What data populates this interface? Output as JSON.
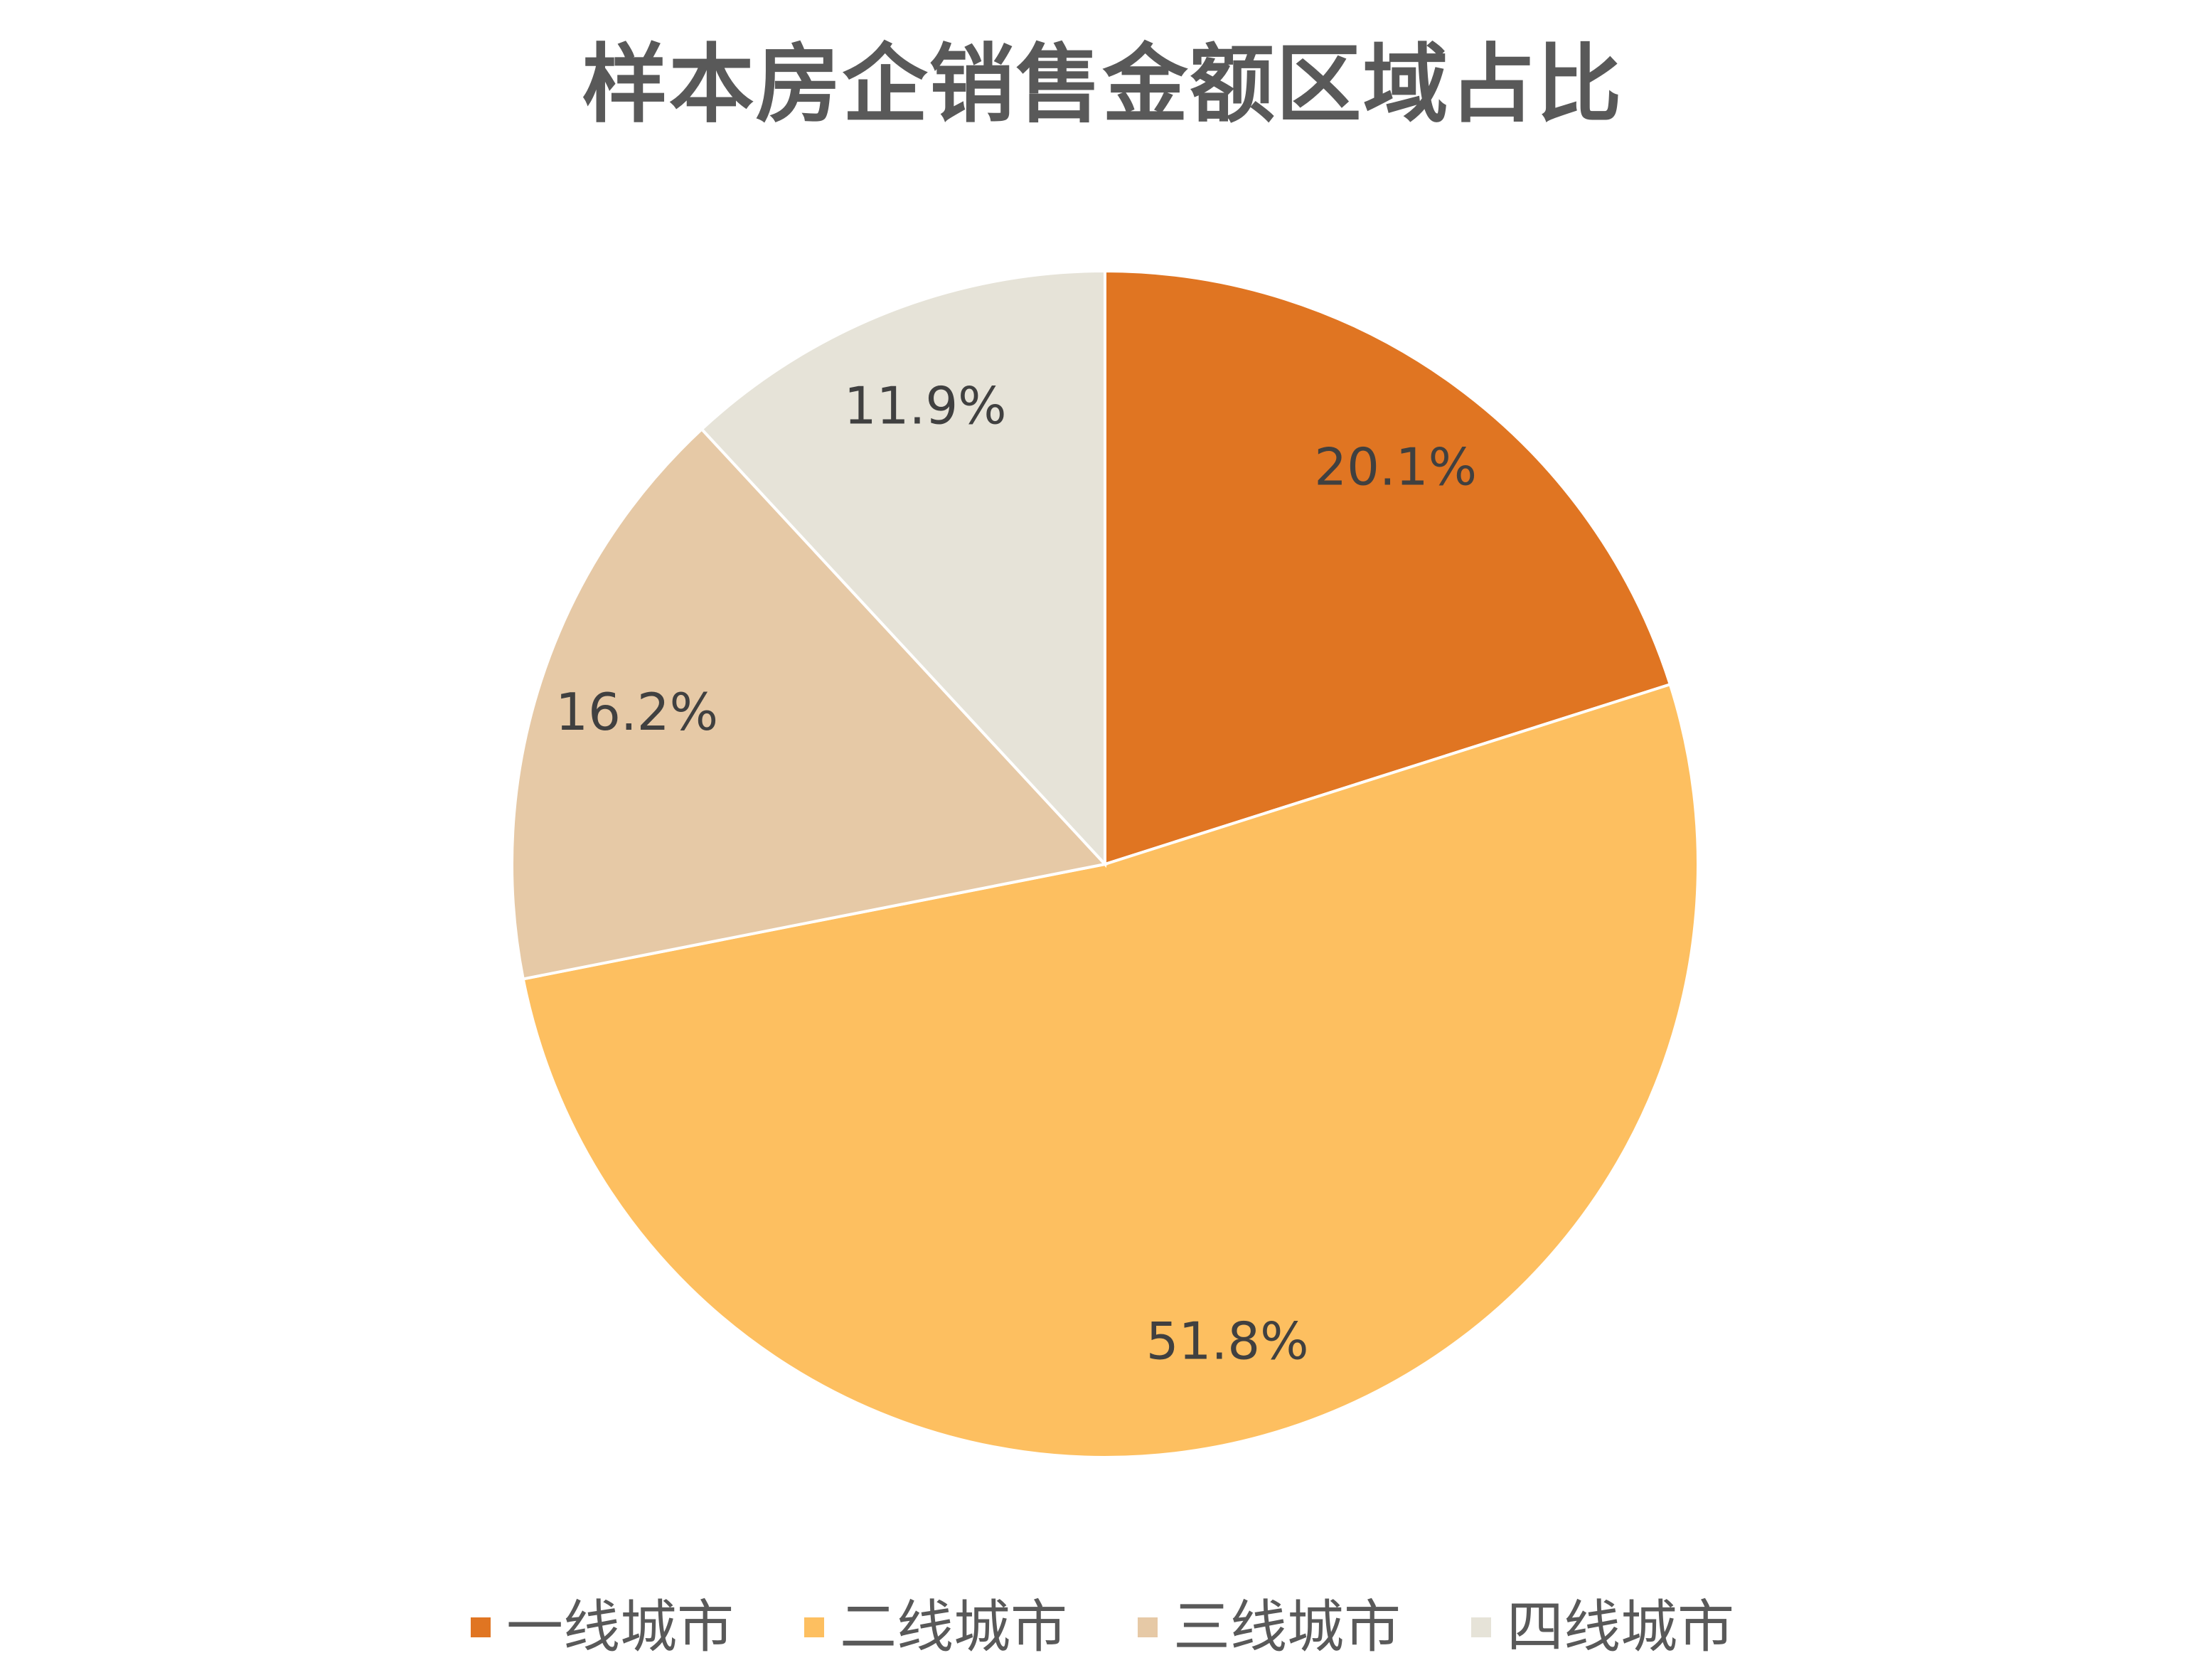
{
  "chart_data": {
    "type": "pie",
    "title": "样本房企销售金额区域占比",
    "categories": [
      "一线城市",
      "二线城市",
      "三线城市",
      "四线城市"
    ],
    "values": [
      20.1,
      51.8,
      16.2,
      11.9
    ],
    "data_labels": [
      "20.1%",
      "51.8%",
      "16.2%",
      "11.9%"
    ],
    "colors": [
      "#E07522",
      "#FDBF60",
      "#E6C9A6",
      "#E6E3D8"
    ],
    "legend_position": "bottom"
  }
}
